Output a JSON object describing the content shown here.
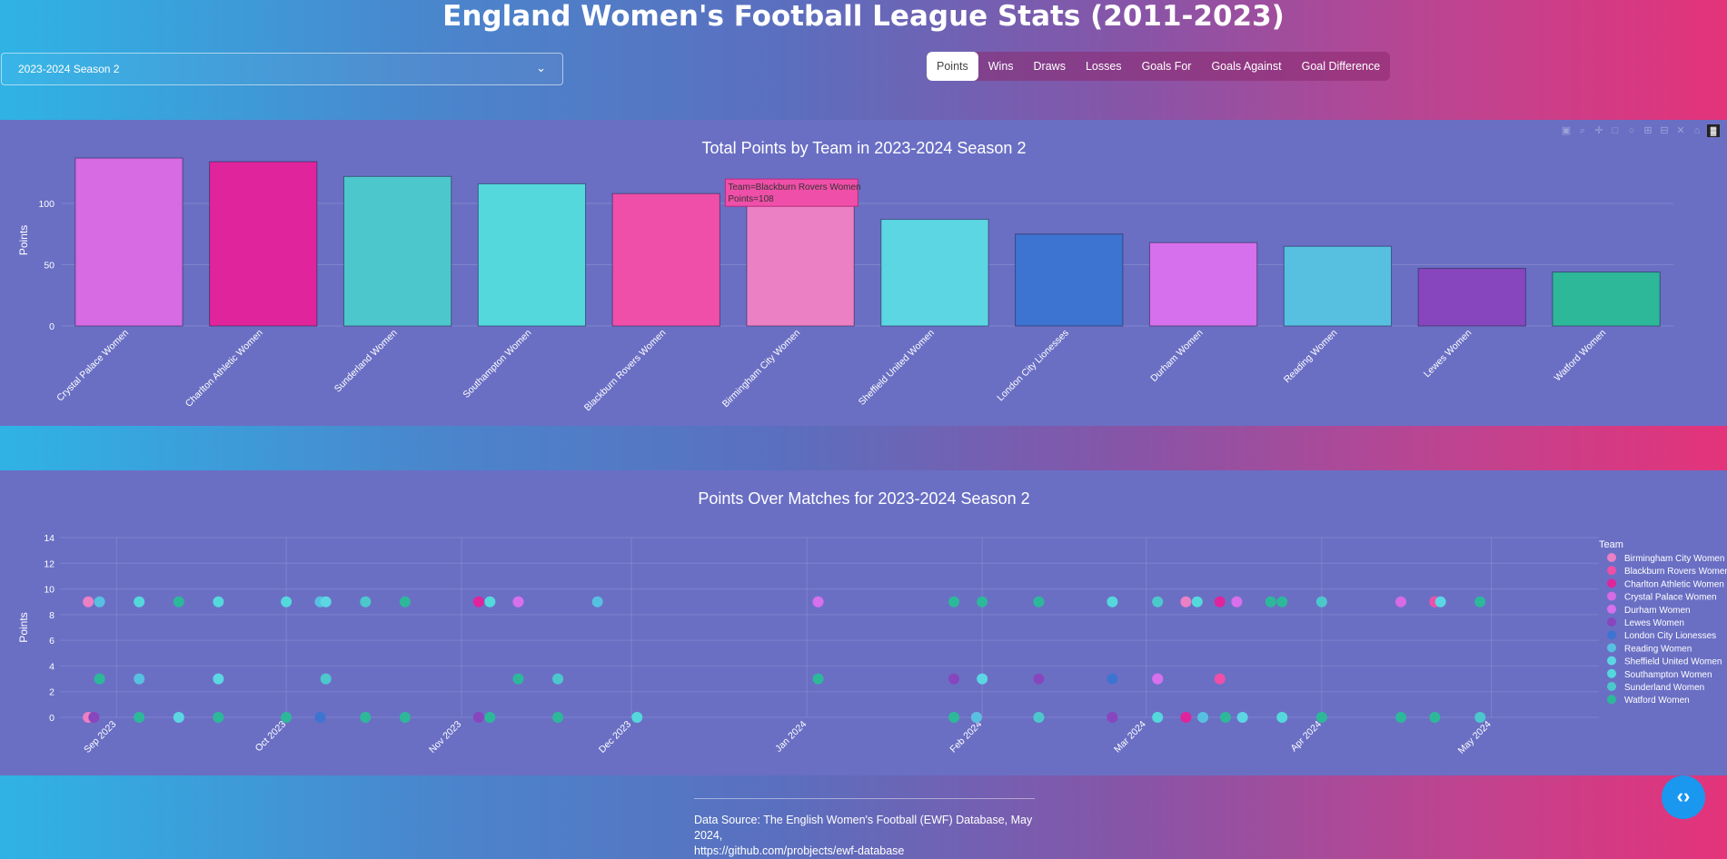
{
  "page": {
    "title": "England Women's Football League Stats (2011-2023)",
    "source_line1": "Data Source: The English Women's Football (EWF) Database, May 2024,",
    "source_line2": "https://github.com/probjects/ewf-database",
    "code_button_icon": "code-icon"
  },
  "season_select": {
    "value": "2023-2024 Season 2",
    "icon": "chevron-down-icon"
  },
  "metric_tabs": [
    {
      "label": "Points",
      "active": true
    },
    {
      "label": "Wins",
      "active": false
    },
    {
      "label": "Draws",
      "active": false
    },
    {
      "label": "Losses",
      "active": false
    },
    {
      "label": "Goals For",
      "active": false
    },
    {
      "label": "Goals Against",
      "active": false
    },
    {
      "label": "Goal Difference",
      "active": false
    }
  ],
  "modebar_icons": [
    "camera-icon",
    "zoom-icon",
    "pan-icon",
    "box-select-icon",
    "lasso-icon",
    "zoom-in-icon",
    "zoom-out-icon",
    "autoscale-icon",
    "home-icon",
    "plotly-logo-icon"
  ],
  "chart_data": [
    {
      "type": "bar",
      "title": "Total Points by Team in 2023-2024 Season 2",
      "xlabel": "",
      "ylabel": "Points",
      "ylim": [
        0,
        140
      ],
      "yticks": [
        0,
        50,
        100
      ],
      "grid": true,
      "categories": [
        "Crystal Palace Women",
        "Charlton Athletic Women",
        "Sunderland Women",
        "Southampton Women",
        "Blackburn Rovers Women",
        "Birmingham City Women",
        "Sheffield United Women",
        "London City Lionesses",
        "Durham Women",
        "Reading Women",
        "Lewes Women",
        "Watford Women"
      ],
      "values": [
        137,
        134,
        122,
        116,
        108,
        102,
        87,
        75,
        68,
        65,
        47,
        44
      ],
      "colors": [
        "#d66be3",
        "#e0249c",
        "#4cc8cc",
        "#54d8dc",
        "#ef4fa8",
        "#eb80c4",
        "#5cd6e3",
        "#3d74d1",
        "#d670ec",
        "#57c0e0",
        "#8746bd",
        "#2db89a"
      ],
      "tooltip": {
        "line1": "Team=Blackburn Rovers Women",
        "line2": "Points=108"
      }
    },
    {
      "type": "scatter",
      "title": "Points Over Matches for 2023-2024 Season 2",
      "xlabel": "",
      "ylabel": "Points",
      "ylim": [
        0,
        14
      ],
      "yticks": [
        0,
        2,
        4,
        6,
        8,
        10,
        12,
        14
      ],
      "xlim": [
        "2023-08-22",
        "2024-05-20"
      ],
      "xticks": [
        {
          "date": "2023-09-01",
          "label": "Sep 2023"
        },
        {
          "date": "2023-10-01",
          "label": "Oct 2023"
        },
        {
          "date": "2023-11-01",
          "label": "Nov 2023"
        },
        {
          "date": "2023-12-01",
          "label": "Dec 2023"
        },
        {
          "date": "2024-01-01",
          "label": "Jan 2024"
        },
        {
          "date": "2024-02-01",
          "label": "Feb 2024"
        },
        {
          "date": "2024-03-01",
          "label": "Mar 2024"
        },
        {
          "date": "2024-04-01",
          "label": "Apr 2024"
        },
        {
          "date": "2024-05-01",
          "label": "May 2024"
        }
      ],
      "grid": true,
      "legend_title": "Team",
      "legend_position": "right",
      "series": [
        {
          "name": "Birmingham City Women",
          "color": "#eb80c4",
          "points": [
            [
              "2023-08-27",
              9
            ],
            [
              "2023-08-27",
              0
            ],
            [
              "2024-01-31",
              0
            ],
            [
              "2024-03-08",
              9
            ],
            [
              "2024-04-21",
              9
            ]
          ]
        },
        {
          "name": "Blackburn Rovers Women",
          "color": "#ef4fa8",
          "points": [
            [
              "2023-08-28",
              0
            ],
            [
              "2024-01-31",
              0
            ],
            [
              "2024-03-14",
              3
            ],
            [
              "2024-03-17",
              9
            ],
            [
              "2024-04-21",
              9
            ]
          ]
        },
        {
          "name": "Charlton Athletic Women",
          "color": "#e0249c",
          "points": [
            [
              "2023-11-04",
              9
            ],
            [
              "2024-03-08",
              0
            ],
            [
              "2024-03-14",
              9
            ]
          ]
        },
        {
          "name": "Crystal Palace Women",
          "color": "#d66be3",
          "points": [
            [
              "2023-11-11",
              9
            ],
            [
              "2024-01-03",
              9
            ],
            [
              "2024-03-03",
              3
            ],
            [
              "2024-04-15",
              9
            ]
          ]
        },
        {
          "name": "Durham Women",
          "color": "#d670ec",
          "points": [
            [
              "2023-11-11",
              9
            ],
            [
              "2024-01-03",
              9
            ],
            [
              "2024-03-03",
              3
            ],
            [
              "2024-03-17",
              9
            ]
          ]
        },
        {
          "name": "Lewes Women",
          "color": "#8746bd",
          "points": [
            [
              "2023-08-28",
              0
            ],
            [
              "2023-11-04",
              0
            ],
            [
              "2024-01-27",
              3
            ],
            [
              "2024-02-11",
              3
            ],
            [
              "2024-02-24",
              0
            ]
          ]
        },
        {
          "name": "London City Lionesses",
          "color": "#3d74d1",
          "points": [
            [
              "2023-10-07",
              0
            ],
            [
              "2024-02-24",
              3
            ]
          ]
        },
        {
          "name": "Reading Women",
          "color": "#57c0e0",
          "points": [
            [
              "2023-08-29",
              9
            ],
            [
              "2023-09-05",
              3
            ],
            [
              "2023-10-07",
              9
            ],
            [
              "2023-11-25",
              9
            ],
            [
              "2024-01-31",
              0
            ],
            [
              "2024-03-11",
              0
            ]
          ]
        },
        {
          "name": "Sheffield United Women",
          "color": "#5cd6e3",
          "points": [
            [
              "2023-09-12",
              0
            ],
            [
              "2023-09-19",
              3
            ],
            [
              "2023-10-08",
              9
            ],
            [
              "2024-02-01",
              3
            ],
            [
              "2024-03-18",
              0
            ],
            [
              "2024-04-22",
              9
            ]
          ]
        },
        {
          "name": "Southampton Women",
          "color": "#54d8dc",
          "points": [
            [
              "2023-09-05",
              9
            ],
            [
              "2023-09-19",
              9
            ],
            [
              "2023-10-01",
              9
            ],
            [
              "2023-11-06",
              9
            ],
            [
              "2023-12-02",
              0
            ],
            [
              "2024-02-24",
              9
            ],
            [
              "2024-03-03",
              0
            ],
            [
              "2024-03-10",
              9
            ],
            [
              "2024-03-25",
              0
            ]
          ]
        },
        {
          "name": "Sunderland Women",
          "color": "#4cc8cc",
          "points": [
            [
              "2023-10-08",
              3
            ],
            [
              "2023-10-15",
              9
            ],
            [
              "2023-11-18",
              3
            ],
            [
              "2024-02-11",
              0
            ],
            [
              "2024-03-03",
              9
            ],
            [
              "2024-04-01",
              9
            ],
            [
              "2024-04-29",
              0
            ]
          ]
        },
        {
          "name": "Watford Women",
          "color": "#2db89a",
          "points": [
            [
              "2023-08-29",
              3
            ],
            [
              "2023-09-05",
              0
            ],
            [
              "2023-09-12",
              9
            ],
            [
              "2023-09-19",
              0
            ],
            [
              "2023-10-01",
              0
            ],
            [
              "2023-10-15",
              0
            ],
            [
              "2023-10-22",
              9
            ],
            [
              "2023-10-22",
              0
            ],
            [
              "2023-11-06",
              0
            ],
            [
              "2023-11-11",
              3
            ],
            [
              "2023-11-18",
              0
            ],
            [
              "2024-01-03",
              3
            ],
            [
              "2024-01-27",
              9
            ],
            [
              "2024-01-27",
              0
            ],
            [
              "2024-02-01",
              9
            ],
            [
              "2024-02-11",
              9
            ],
            [
              "2024-03-15",
              0
            ],
            [
              "2024-03-23",
              9
            ],
            [
              "2024-03-25",
              9
            ],
            [
              "2024-04-01",
              0
            ],
            [
              "2024-04-15",
              0
            ],
            [
              "2024-04-21",
              0
            ],
            [
              "2024-04-29",
              9
            ]
          ]
        }
      ]
    }
  ]
}
